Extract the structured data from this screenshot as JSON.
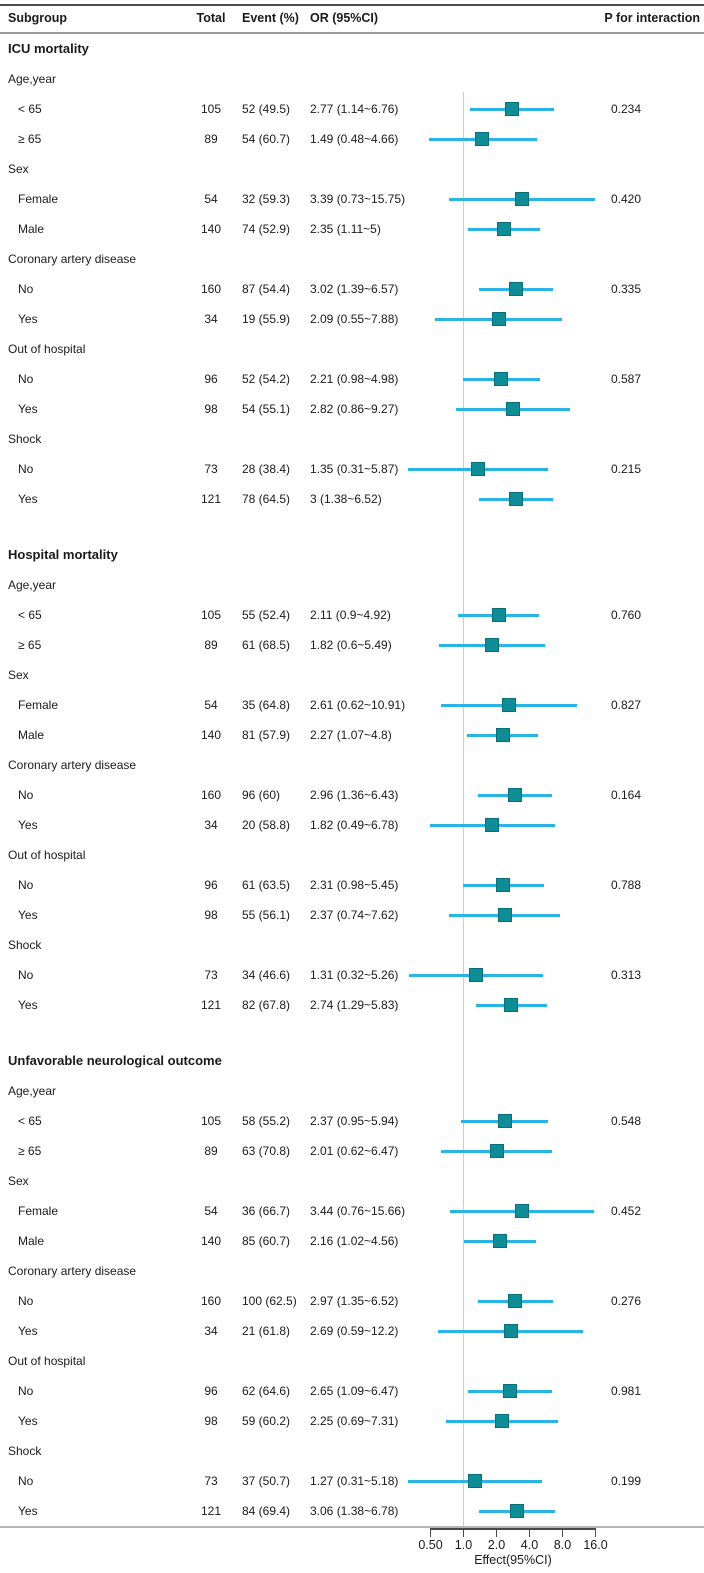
{
  "figure": {
    "columns": {
      "subgroup": "Subgroup",
      "total": "Total",
      "event": "Event (%)",
      "or": "OR (95%CI)",
      "p": "P for interaction"
    }
  },
  "colors": {
    "ci_line": "#2ab4e6",
    "marker_fill": "#0e8d96",
    "marker_border": "#0b6f79",
    "ref_line": "#cdcdcd",
    "axis_line": "#4a4a4a",
    "border_dark": "#4d4d4d",
    "border_light": "#b5b5b5",
    "header_rule": "#9a9a9a",
    "text": "#1a1a1a"
  },
  "chart_data": {
    "type": "forest",
    "xscale": "log2",
    "xlabel": "Effect(95%CI)",
    "ref_value": 1.0,
    "xlim": [
      0.5,
      16
    ],
    "x_ticks": {
      "labels": [
        "0.50",
        "1.0",
        "2.0",
        "4.0",
        "8.0",
        "16.0"
      ],
      "values": [
        0.5,
        1,
        2,
        4,
        8,
        16
      ]
    },
    "sections": [
      {
        "title": "ICU mortality",
        "groups": [
          {
            "label": "Age,year",
            "p": "0.234",
            "rows": [
              {
                "label": "< 65",
                "total": "105",
                "event": "52 (49.5)",
                "or_text": "2.77 (1.14~6.76)",
                "or": 2.77,
                "lo": 1.14,
                "hi": 6.76
              },
              {
                "label": "≥ 65",
                "total": "89",
                "event": "54 (60.7)",
                "or_text": "1.49 (0.48~4.66)",
                "or": 1.49,
                "lo": 0.48,
                "hi": 4.66
              }
            ]
          },
          {
            "label": "Sex",
            "p": "0.420",
            "rows": [
              {
                "label": "Female",
                "total": "54",
                "event": "32 (59.3)",
                "or_text": "3.39 (0.73~15.75)",
                "or": 3.39,
                "lo": 0.73,
                "hi": 15.75
              },
              {
                "label": "Male",
                "total": "140",
                "event": "74 (52.9)",
                "or_text": "2.35 (1.11~5)",
                "or": 2.35,
                "lo": 1.11,
                "hi": 5
              }
            ]
          },
          {
            "label": "Coronary artery disease",
            "p": "0.335",
            "rows": [
              {
                "label": "No",
                "total": "160",
                "event": "87 (54.4)",
                "or_text": "3.02 (1.39~6.57)",
                "or": 3.02,
                "lo": 1.39,
                "hi": 6.57
              },
              {
                "label": "Yes",
                "total": "34",
                "event": "19 (55.9)",
                "or_text": "2.09 (0.55~7.88)",
                "or": 2.09,
                "lo": 0.55,
                "hi": 7.88
              }
            ]
          },
          {
            "label": "Out of hospital",
            "p": "0.587",
            "rows": [
              {
                "label": "No",
                "total": "96",
                "event": "52 (54.2)",
                "or_text": "2.21 (0.98~4.98)",
                "or": 2.21,
                "lo": 0.98,
                "hi": 4.98
              },
              {
                "label": "Yes",
                "total": "98",
                "event": "54 (55.1)",
                "or_text": "2.82 (0.86~9.27)",
                "or": 2.82,
                "lo": 0.86,
                "hi": 9.27
              }
            ]
          },
          {
            "label": "Shock",
            "p": "0.215",
            "rows": [
              {
                "label": "No",
                "total": "73",
                "event": "28 (38.4)",
                "or_text": "1.35 (0.31~5.87)",
                "or": 1.35,
                "lo": 0.31,
                "hi": 5.87
              },
              {
                "label": "Yes",
                "total": "121",
                "event": "78 (64.5)",
                "or_text": "3 (1.38~6.52)",
                "or": 3,
                "lo": 1.38,
                "hi": 6.52
              }
            ]
          }
        ]
      },
      {
        "title": "Hospital mortality",
        "groups": [
          {
            "label": "Age,year",
            "p": "0.760",
            "rows": [
              {
                "label": "< 65",
                "total": "105",
                "event": "55 (52.4)",
                "or_text": "2.11 (0.9~4.92)",
                "or": 2.11,
                "lo": 0.9,
                "hi": 4.92
              },
              {
                "label": "≥ 65",
                "total": "89",
                "event": "61 (68.5)",
                "or_text": "1.82 (0.6~5.49)",
                "or": 1.82,
                "lo": 0.6,
                "hi": 5.49
              }
            ]
          },
          {
            "label": "Sex",
            "p": "0.827",
            "rows": [
              {
                "label": "Female",
                "total": "54",
                "event": "35 (64.8)",
                "or_text": "2.61 (0.62~10.91)",
                "or": 2.61,
                "lo": 0.62,
                "hi": 10.91
              },
              {
                "label": "Male",
                "total": "140",
                "event": "81 (57.9)",
                "or_text": "2.27 (1.07~4.8)",
                "or": 2.27,
                "lo": 1.07,
                "hi": 4.8
              }
            ]
          },
          {
            "label": "Coronary artery disease",
            "p": "0.164",
            "rows": [
              {
                "label": "No",
                "total": "160",
                "event": "96 (60)",
                "or_text": "2.96 (1.36~6.43)",
                "or": 2.96,
                "lo": 1.36,
                "hi": 6.43
              },
              {
                "label": "Yes",
                "total": "34",
                "event": "20 (58.8)",
                "or_text": "1.82 (0.49~6.78)",
                "or": 1.82,
                "lo": 0.49,
                "hi": 6.78
              }
            ]
          },
          {
            "label": "Out of hospital",
            "p": "0.788",
            "rows": [
              {
                "label": "No",
                "total": "96",
                "event": "61 (63.5)",
                "or_text": "2.31 (0.98~5.45)",
                "or": 2.31,
                "lo": 0.98,
                "hi": 5.45
              },
              {
                "label": "Yes",
                "total": "98",
                "event": "55 (56.1)",
                "or_text": "2.37 (0.74~7.62)",
                "or": 2.37,
                "lo": 0.74,
                "hi": 7.62
              }
            ]
          },
          {
            "label": "Shock",
            "p": "0.313",
            "rows": [
              {
                "label": "No",
                "total": "73",
                "event": "34 (46.6)",
                "or_text": "1.31 (0.32~5.26)",
                "or": 1.31,
                "lo": 0.32,
                "hi": 5.26
              },
              {
                "label": "Yes",
                "total": "121",
                "event": "82 (67.8)",
                "or_text": "2.74 (1.29~5.83)",
                "or": 2.74,
                "lo": 1.29,
                "hi": 5.83
              }
            ]
          }
        ]
      },
      {
        "title": "Unfavorable neurological outcome",
        "groups": [
          {
            "label": "Age,year",
            "p": "0.548",
            "rows": [
              {
                "label": "< 65",
                "total": "105",
                "event": "58 (55.2)",
                "or_text": "2.37 (0.95~5.94)",
                "or": 2.37,
                "lo": 0.95,
                "hi": 5.94
              },
              {
                "label": "≥ 65",
                "total": "89",
                "event": "63 (70.8)",
                "or_text": "2.01 (0.62~6.47)",
                "or": 2.01,
                "lo": 0.62,
                "hi": 6.47
              }
            ]
          },
          {
            "label": "Sex",
            "p": "0.452",
            "rows": [
              {
                "label": "Female",
                "total": "54",
                "event": "36 (66.7)",
                "or_text": "3.44 (0.76~15.66)",
                "or": 3.44,
                "lo": 0.76,
                "hi": 15.66
              },
              {
                "label": "Male",
                "total": "140",
                "event": "85 (60.7)",
                "or_text": "2.16 (1.02~4.56)",
                "or": 2.16,
                "lo": 1.02,
                "hi": 4.56
              }
            ]
          },
          {
            "label": "Coronary artery disease",
            "p": "0.276",
            "rows": [
              {
                "label": "No",
                "total": "160",
                "event": "100 (62.5)",
                "or_text": "2.97 (1.35~6.52)",
                "or": 2.97,
                "lo": 1.35,
                "hi": 6.52
              },
              {
                "label": "Yes",
                "total": "34",
                "event": "21 (61.8)",
                "or_text": "2.69 (0.59~12.2)",
                "or": 2.69,
                "lo": 0.59,
                "hi": 12.2
              }
            ]
          },
          {
            "label": "Out of hospital",
            "p": "0.981",
            "rows": [
              {
                "label": "No",
                "total": "96",
                "event": "62 (64.6)",
                "or_text": "2.65 (1.09~6.47)",
                "or": 2.65,
                "lo": 1.09,
                "hi": 6.47
              },
              {
                "label": "Yes",
                "total": "98",
                "event": "59 (60.2)",
                "or_text": "2.25 (0.69~7.31)",
                "or": 2.25,
                "lo": 0.69,
                "hi": 7.31
              }
            ]
          },
          {
            "label": "Shock",
            "p": "0.199",
            "rows": [
              {
                "label": "No",
                "total": "73",
                "event": "37 (50.7)",
                "or_text": "1.27 (0.31~5.18)",
                "or": 1.27,
                "lo": 0.31,
                "hi": 5.18
              },
              {
                "label": "Yes",
                "total": "121",
                "event": "84 (69.4)",
                "or_text": "3.06 (1.38~6.78)",
                "or": 3.06,
                "lo": 1.38,
                "hi": 6.78
              }
            ]
          }
        ]
      }
    ]
  }
}
